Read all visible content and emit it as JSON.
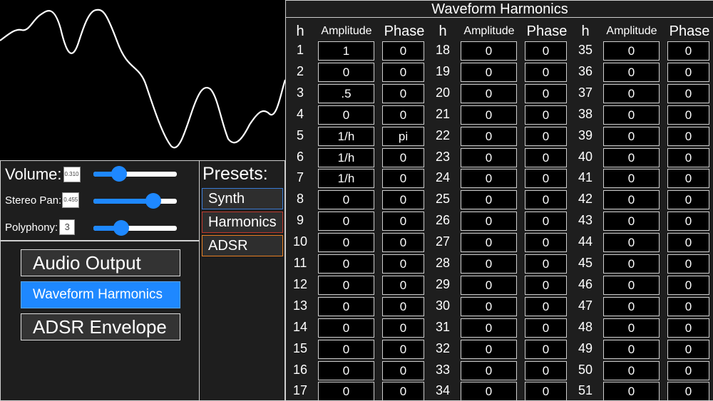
{
  "controls": {
    "volume": {
      "label": "Volume:",
      "value": "0.310",
      "level": 0.31
    },
    "pan": {
      "label": "Stereo Pan:",
      "value": "0.455",
      "level": 0.72
    },
    "polyphony": {
      "label": "Polyphony:",
      "value": "3",
      "level": 0.33
    }
  },
  "nav": {
    "items": [
      {
        "label": "Audio Output",
        "active": false
      },
      {
        "label": "Waveform Harmonics",
        "active": true
      },
      {
        "label": "ADSR Envelope",
        "active": false
      }
    ]
  },
  "presets": {
    "title": "Presets:",
    "items": [
      {
        "label": "Synth",
        "color": "#3a7bd5"
      },
      {
        "label": "Harmonics",
        "color": "#c0392b"
      },
      {
        "label": "ADSR",
        "color": "#e67e22"
      }
    ]
  },
  "harmonics": {
    "title": "Waveform Harmonics",
    "headers": {
      "h": "h",
      "amplitude": "Amplitude",
      "phase": "Phase"
    },
    "columns": [
      {
        "rows": [
          {
            "h": "1",
            "amp": "1",
            "phase": "0"
          },
          {
            "h": "2",
            "amp": "0",
            "phase": "0"
          },
          {
            "h": "3",
            "amp": ".5",
            "phase": "0"
          },
          {
            "h": "4",
            "amp": "0",
            "phase": "0"
          },
          {
            "h": "5",
            "amp": "1/h",
            "phase": "pi"
          },
          {
            "h": "6",
            "amp": "1/h",
            "phase": "0"
          },
          {
            "h": "7",
            "amp": "1/h",
            "phase": "0"
          },
          {
            "h": "8",
            "amp": "0",
            "phase": "0"
          },
          {
            "h": "9",
            "amp": "0",
            "phase": "0"
          },
          {
            "h": "10",
            "amp": "0",
            "phase": "0"
          },
          {
            "h": "11",
            "amp": "0",
            "phase": "0"
          },
          {
            "h": "12",
            "amp": "0",
            "phase": "0"
          },
          {
            "h": "13",
            "amp": "0",
            "phase": "0"
          },
          {
            "h": "14",
            "amp": "0",
            "phase": "0"
          },
          {
            "h": "15",
            "amp": "0",
            "phase": "0"
          },
          {
            "h": "16",
            "amp": "0",
            "phase": "0"
          },
          {
            "h": "17",
            "amp": "0",
            "phase": "0"
          }
        ]
      },
      {
        "rows": [
          {
            "h": "18",
            "amp": "0",
            "phase": "0"
          },
          {
            "h": "19",
            "amp": "0",
            "phase": "0"
          },
          {
            "h": "20",
            "amp": "0",
            "phase": "0"
          },
          {
            "h": "21",
            "amp": "0",
            "phase": "0"
          },
          {
            "h": "22",
            "amp": "0",
            "phase": "0"
          },
          {
            "h": "23",
            "amp": "0",
            "phase": "0"
          },
          {
            "h": "24",
            "amp": "0",
            "phase": "0"
          },
          {
            "h": "25",
            "amp": "0",
            "phase": "0"
          },
          {
            "h": "26",
            "amp": "0",
            "phase": "0"
          },
          {
            "h": "27",
            "amp": "0",
            "phase": "0"
          },
          {
            "h": "28",
            "amp": "0",
            "phase": "0"
          },
          {
            "h": "29",
            "amp": "0",
            "phase": "0"
          },
          {
            "h": "30",
            "amp": "0",
            "phase": "0"
          },
          {
            "h": "31",
            "amp": "0",
            "phase": "0"
          },
          {
            "h": "32",
            "amp": "0",
            "phase": "0"
          },
          {
            "h": "33",
            "amp": "0",
            "phase": "0"
          },
          {
            "h": "34",
            "amp": "0",
            "phase": "0"
          }
        ]
      },
      {
        "rows": [
          {
            "h": "35",
            "amp": "0",
            "phase": "0"
          },
          {
            "h": "36",
            "amp": "0",
            "phase": "0"
          },
          {
            "h": "37",
            "amp": "0",
            "phase": "0"
          },
          {
            "h": "38",
            "amp": "0",
            "phase": "0"
          },
          {
            "h": "39",
            "amp": "0",
            "phase": "0"
          },
          {
            "h": "40",
            "amp": "0",
            "phase": "0"
          },
          {
            "h": "41",
            "amp": "0",
            "phase": "0"
          },
          {
            "h": "42",
            "amp": "0",
            "phase": "0"
          },
          {
            "h": "43",
            "amp": "0",
            "phase": "0"
          },
          {
            "h": "44",
            "amp": "0",
            "phase": "0"
          },
          {
            "h": "45",
            "amp": "0",
            "phase": "0"
          },
          {
            "h": "46",
            "amp": "0",
            "phase": "0"
          },
          {
            "h": "47",
            "amp": "0",
            "phase": "0"
          },
          {
            "h": "48",
            "amp": "0",
            "phase": "0"
          },
          {
            "h": "49",
            "amp": "0",
            "phase": "0"
          },
          {
            "h": "50",
            "amp": "0",
            "phase": "0"
          },
          {
            "h": "51",
            "amp": "0",
            "phase": "0"
          }
        ]
      }
    ]
  },
  "colors": {
    "accent": "#1e88ff",
    "panel": "#1e1e1e",
    "border": "#cfcfcf"
  }
}
